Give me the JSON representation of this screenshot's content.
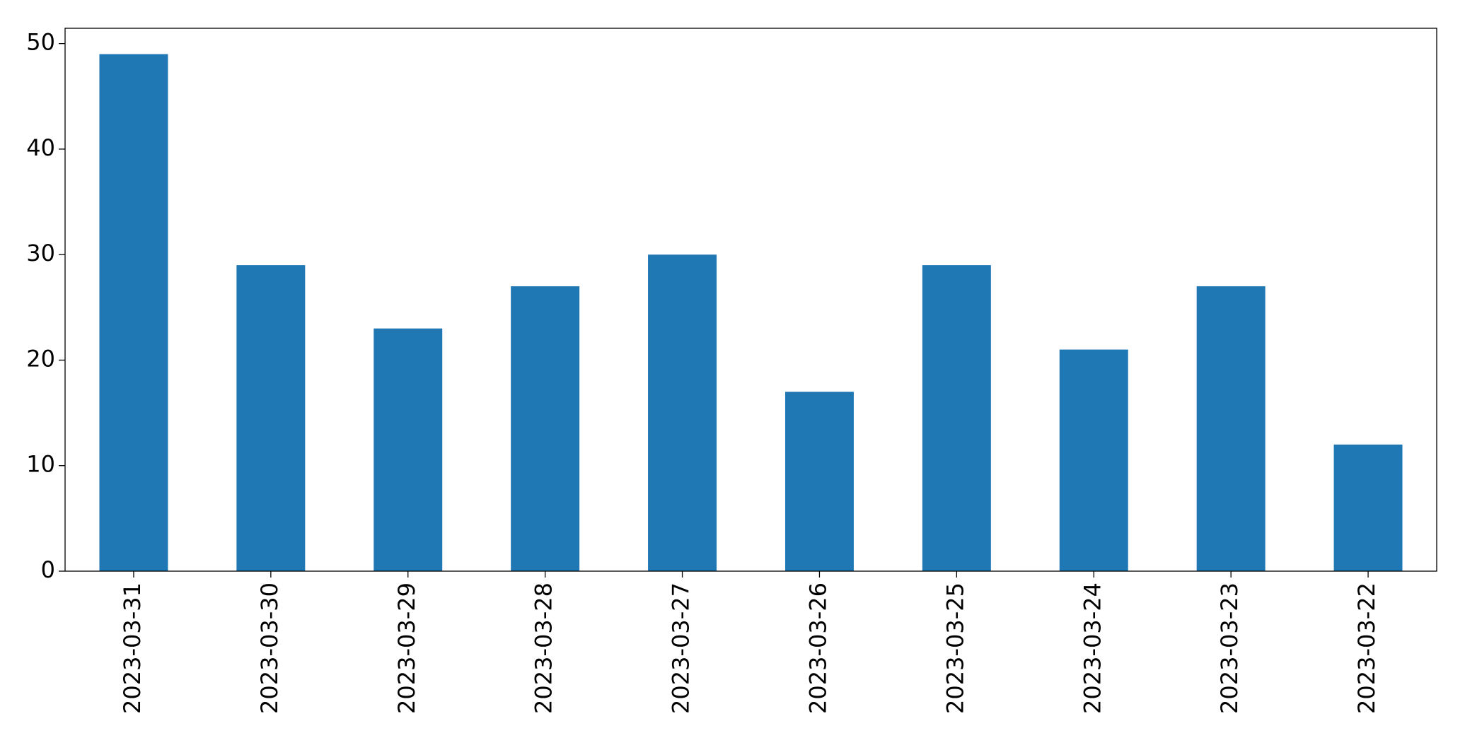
{
  "chart_data": {
    "type": "bar",
    "categories": [
      "2023-03-31",
      "2023-03-30",
      "2023-03-29",
      "2023-03-28",
      "2023-03-27",
      "2023-03-26",
      "2023-03-25",
      "2023-03-24",
      "2023-03-23",
      "2023-03-22"
    ],
    "values": [
      49,
      29,
      23,
      27,
      30,
      17,
      29,
      21,
      27,
      12
    ],
    "color": "#1f77b4",
    "ylim": [
      0,
      51.45
    ],
    "yticks": [
      0,
      10,
      20,
      30,
      40,
      50
    ],
    "grid": false
  }
}
